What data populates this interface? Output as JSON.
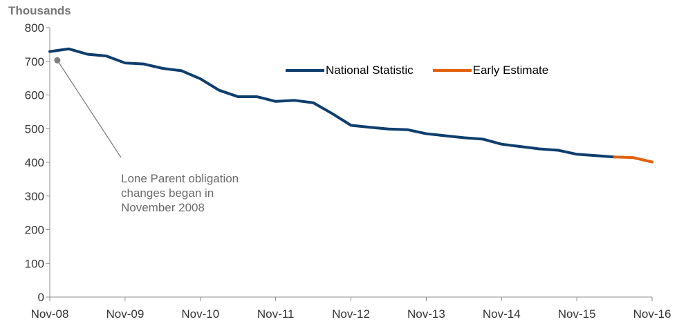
{
  "chart_data": {
    "type": "line",
    "ylabel": "Thousands",
    "ylim": [
      0,
      800
    ],
    "yticks": [
      0,
      100,
      200,
      300,
      400,
      500,
      600,
      700,
      800
    ],
    "xticks": [
      "Nov-08",
      "Nov-09",
      "Nov-10",
      "Nov-11",
      "Nov-12",
      "Nov-13",
      "Nov-14",
      "Nov-15",
      "Nov-16"
    ],
    "x_quarters_total": 32,
    "grid": false,
    "legend_placement": "top-center",
    "series": [
      {
        "name": "National Statistic",
        "color": "#0f3e6e",
        "x_quarter_index": [
          0,
          1,
          2,
          3,
          4,
          5,
          6,
          7,
          8,
          9,
          10,
          11,
          12,
          13,
          14,
          15,
          16,
          17,
          18,
          19,
          20,
          21,
          22,
          23,
          24,
          25,
          26,
          27,
          28,
          29,
          30
        ],
        "values": [
          729,
          737,
          721,
          716,
          695,
          692,
          679,
          672,
          648,
          614,
          595,
          595,
          581,
          584,
          577,
          545,
          510,
          504,
          499,
          497,
          485,
          479,
          473,
          469,
          454,
          447,
          440,
          436,
          424,
          420,
          416
        ]
      },
      {
        "name": "Early Estimate",
        "color": "#e2620e",
        "x_quarter_index": [
          30,
          31,
          32
        ],
        "values": [
          416,
          414,
          401
        ]
      }
    ],
    "annotation": {
      "text": "Lone Parent obligation\nchanges began in\nNovember 2008",
      "point": {
        "x_quarter_index": 0.4,
        "value": 703
      },
      "color": "#7f7f7f"
    }
  }
}
